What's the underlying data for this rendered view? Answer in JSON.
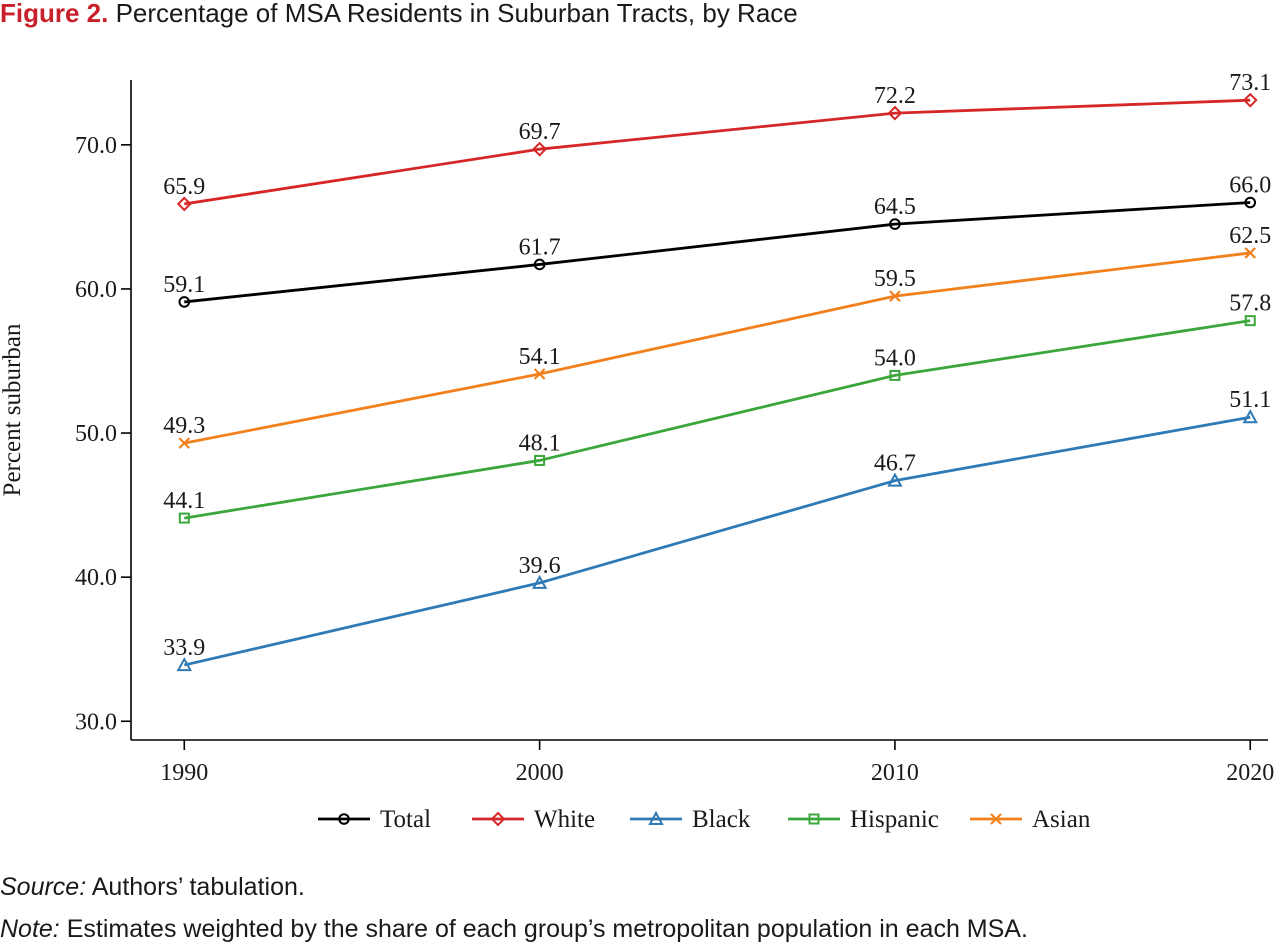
{
  "figure": {
    "label": "Figure 2.",
    "title": "Percentage of MSA Residents in Suburban Tracts, by Race"
  },
  "chart_data": {
    "type": "line",
    "title": "Percentage of MSA Residents in Suburban Tracts, by Race",
    "xlabel": "",
    "ylabel": "Percent suburban",
    "x": [
      1990,
      2000,
      2010,
      2020
    ],
    "x_tick_labels": [
      "1990",
      "2000",
      "2010",
      "2020"
    ],
    "y_ticks": [
      30.0,
      40.0,
      50.0,
      60.0,
      70.0
    ],
    "y_tick_labels": [
      "30.0",
      "40.0",
      "50.0",
      "60.0",
      "70.0"
    ],
    "ylim": [
      28.7,
      74.5
    ],
    "xlim": [
      1988.5,
      2020.5
    ],
    "grid": false,
    "legend_position": "bottom",
    "series": [
      {
        "name": "Total",
        "color": "#000000",
        "marker": "circle",
        "values": [
          59.1,
          61.7,
          64.5,
          66.0
        ],
        "labels": [
          "59.1",
          "61.7",
          "64.5",
          "66.0"
        ]
      },
      {
        "name": "White",
        "color": "#d62728",
        "marker": "diamond",
        "values": [
          65.9,
          69.7,
          72.2,
          73.1
        ],
        "labels": [
          "65.9",
          "69.7",
          "72.2",
          "73.1"
        ]
      },
      {
        "name": "Black",
        "color": "#2f7ab5",
        "marker": "triangle",
        "values": [
          33.9,
          39.6,
          46.7,
          51.1
        ],
        "labels": [
          "33.9",
          "39.6",
          "46.7",
          "51.1"
        ]
      },
      {
        "name": "Hispanic",
        "color": "#3ba63b",
        "marker": "square",
        "values": [
          44.1,
          48.1,
          54.0,
          57.8
        ],
        "labels": [
          "44.1",
          "48.1",
          "54.0",
          "57.8"
        ]
      },
      {
        "name": "Asian",
        "color": "#f2811d",
        "marker": "x",
        "values": [
          49.3,
          54.1,
          59.5,
          62.5
        ],
        "labels": [
          "49.3",
          "54.1",
          "59.5",
          "62.5"
        ]
      }
    ]
  },
  "notes": {
    "source_lead": "Source:",
    "source_text": " Authors’ tabulation.",
    "note_lead": "Note:",
    "note_text": " Estimates weighted by the share of each group’s metropolitan population in each MSA."
  }
}
